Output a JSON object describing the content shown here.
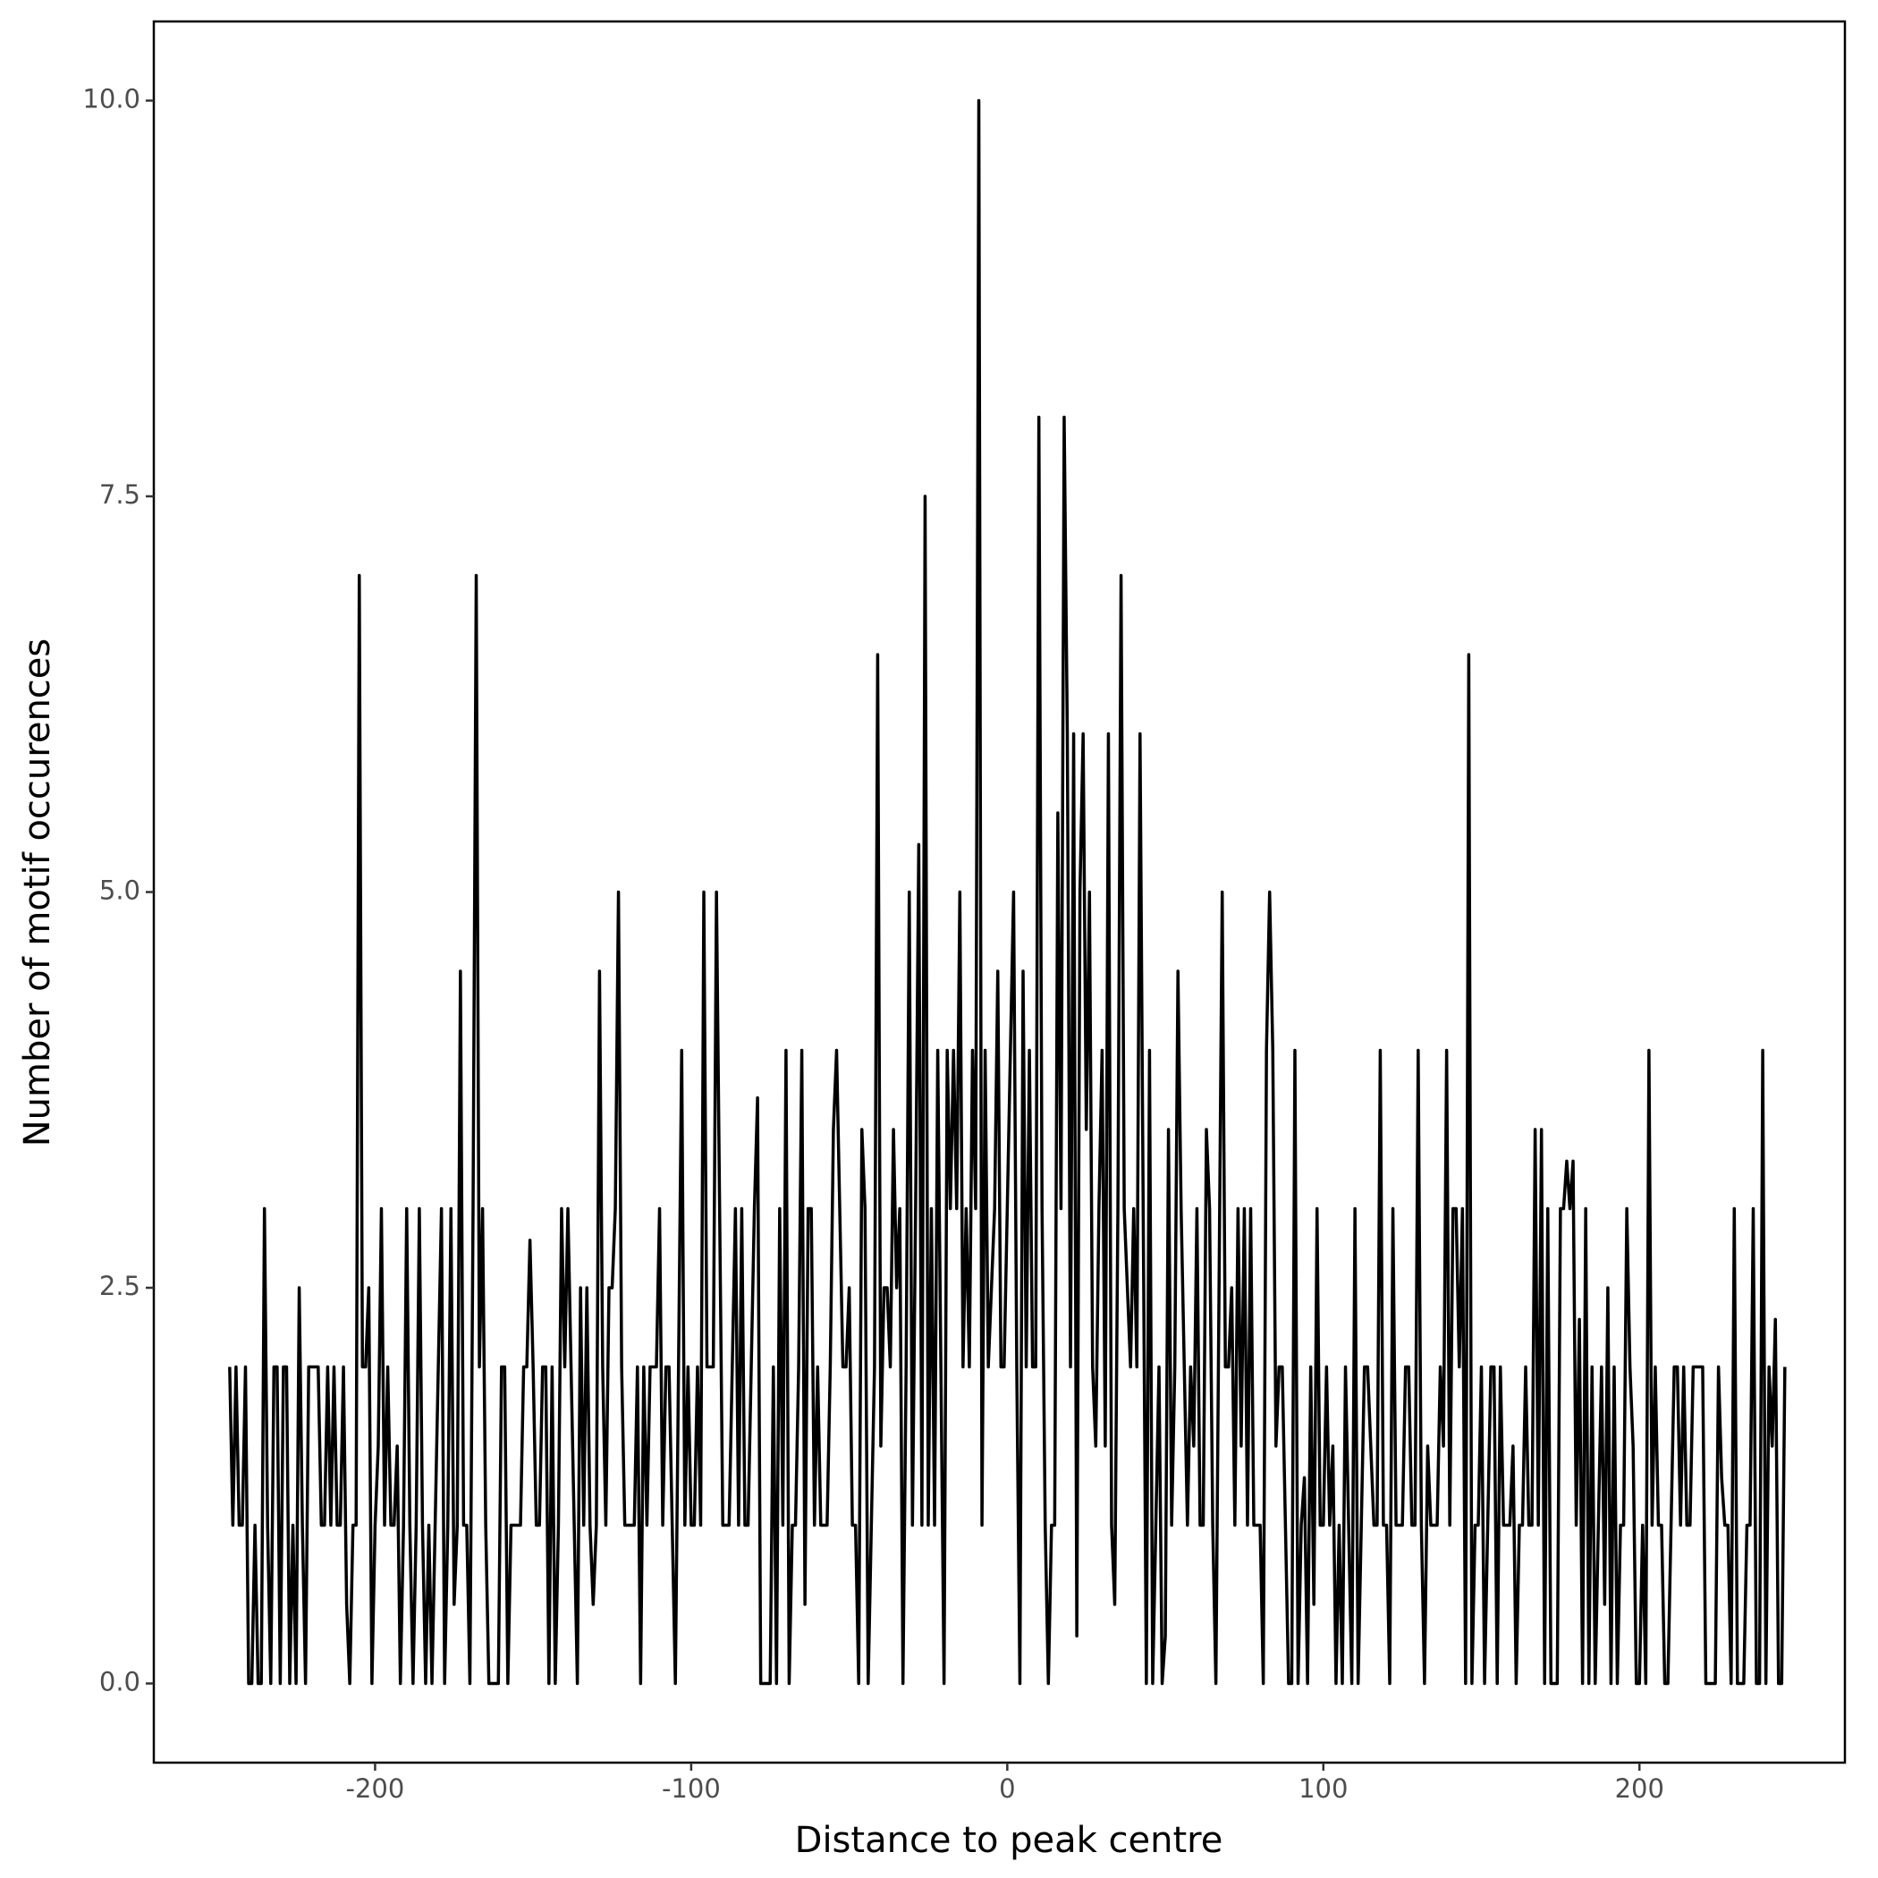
{
  "chart_data": {
    "type": "line",
    "x_label": "Distance to peak centre",
    "y_label": "Number of motif occurences",
    "color": "#000000",
    "xlim": [
      -270,
      265
    ],
    "ylim": [
      -0.5,
      10.5
    ],
    "xticks": [
      -200,
      -100,
      0,
      100,
      200
    ],
    "yticks": [
      {
        "value": 0,
        "label": "0.0"
      },
      2.5,
      {
        "value": 5,
        "label": "5.0"
      },
      7.5,
      {
        "value": 10,
        "label": "10.0"
      }
    ],
    "grid": false,
    "x": [
      -246,
      -245,
      -244,
      -243,
      -242,
      -241,
      -240,
      -239,
      -238,
      -237,
      -236,
      -235,
      -234,
      -233,
      -232,
      -231,
      -230,
      -229,
      -228,
      -227,
      -226,
      -225,
      -224,
      -223,
      -222,
      -221,
      -220,
      -219,
      -218,
      -217,
      -216,
      -215,
      -214,
      -213,
      -212,
      -211,
      -210,
      -209,
      -208,
      -207,
      -206,
      -205,
      -204,
      -203,
      -202,
      -201,
      -200,
      -199,
      -198,
      -197,
      -196,
      -195,
      -194,
      -193,
      -192,
      -191,
      -190,
      -189,
      -188,
      -187,
      -186,
      -185,
      -184,
      -183,
      -182,
      -181,
      -180,
      -179,
      -178,
      -177,
      -176,
      -175,
      -174,
      -173,
      -172,
      -171,
      -170,
      -169,
      -168,
      -167,
      -166,
      -165,
      -164,
      -163,
      -162,
      -161,
      -160,
      -159,
      -158,
      -157,
      -156,
      -155,
      -154,
      -153,
      -152,
      -151,
      -150,
      -149,
      -148,
      -147,
      -146,
      -145,
      -144,
      -143,
      -142,
      -141,
      -140,
      -139,
      -138,
      -137,
      -136,
      -135,
      -134,
      -133,
      -132,
      -131,
      -130,
      -129,
      -128,
      -127,
      -126,
      -125,
      -124,
      -123,
      -122,
      -121,
      -120,
      -119,
      -118,
      -117,
      -116,
      -115,
      -114,
      -113,
      -112,
      -111,
      -110,
      -109,
      -108,
      -107,
      -106,
      -105,
      -104,
      -103,
      -102,
      -101,
      -100,
      -99,
      -98,
      -97,
      -96,
      -95,
      -94,
      -93,
      -92,
      -91,
      -90,
      -89,
      -88,
      -87,
      -86,
      -85,
      -84,
      -83,
      -82,
      -81,
      -80,
      -79,
      -78,
      -77,
      -76,
      -75,
      -74,
      -73,
      -72,
      -71,
      -70,
      -69,
      -68,
      -67,
      -66,
      -65,
      -64,
      -63,
      -62,
      -61,
      -60,
      -59,
      -58,
      -57,
      -56,
      -55,
      -54,
      -53,
      -52,
      -51,
      -50,
      -49,
      -48,
      -47,
      -46,
      -45,
      -44,
      -43,
      -42,
      -41,
      -40,
      -39,
      -38,
      -37,
      -36,
      -35,
      -34,
      -33,
      -32,
      -31,
      -30,
      -29,
      -28,
      -27,
      -26,
      -25,
      -24,
      -23,
      -22,
      -21,
      -20,
      -19,
      -18,
      -17,
      -16,
      -15,
      -14,
      -13,
      -12,
      -11,
      -10,
      -9,
      -8,
      -7,
      -6,
      -5,
      -4,
      -3,
      -2,
      -1,
      0,
      1,
      2,
      3,
      4,
      5,
      6,
      7,
      8,
      9,
      10,
      11,
      12,
      13,
      14,
      15,
      16,
      17,
      18,
      19,
      20,
      21,
      22,
      23,
      24,
      25,
      26,
      27,
      28,
      29,
      30,
      31,
      32,
      33,
      34,
      35,
      36,
      37,
      38,
      39,
      40,
      41,
      42,
      43,
      44,
      45,
      46,
      47,
      48,
      49,
      50,
      51,
      52,
      53,
      54,
      55,
      56,
      57,
      58,
      59,
      60,
      61,
      62,
      63,
      64,
      65,
      66,
      67,
      68,
      69,
      70,
      71,
      72,
      73,
      74,
      75,
      76,
      77,
      78,
      79,
      80,
      81,
      82,
      83,
      84,
      85,
      86,
      87,
      88,
      89,
      90,
      91,
      92,
      93,
      94,
      95,
      96,
      97,
      98,
      99,
      100,
      101,
      102,
      103,
      104,
      105,
      106,
      107,
      108,
      109,
      110,
      111,
      112,
      113,
      114,
      115,
      116,
      117,
      118,
      119,
      120,
      121,
      122,
      123,
      124,
      125,
      126,
      127,
      128,
      129,
      130,
      131,
      132,
      133,
      134,
      135,
      136,
      137,
      138,
      139,
      140,
      141,
      142,
      143,
      144,
      145,
      146,
      147,
      148,
      149,
      150,
      151,
      152,
      153,
      154,
      155,
      156,
      157,
      158,
      159,
      160,
      161,
      162,
      163,
      164,
      165,
      166,
      167,
      168,
      169,
      170,
      171,
      172,
      173,
      174,
      175,
      176,
      177,
      178,
      179,
      180,
      181,
      182,
      183,
      184,
      185,
      186,
      187,
      188,
      189,
      190,
      191,
      192,
      193,
      194,
      195,
      196,
      197,
      198,
      199,
      200,
      201,
      202,
      203,
      204,
      205,
      206,
      207,
      208,
      209,
      210,
      211,
      212,
      213,
      214,
      215,
      216,
      217,
      218,
      219,
      220,
      221,
      222,
      223,
      224,
      225,
      226,
      227,
      228,
      229,
      230,
      231,
      232,
      233,
      234,
      235,
      236,
      237,
      238,
      239,
      240,
      241,
      242,
      243,
      244,
      245,
      246
    ],
    "values": [
      2,
      1,
      2,
      1,
      1,
      2,
      0,
      0,
      1,
      0,
      0,
      3,
      1,
      0,
      2,
      2,
      0,
      2,
      2,
      0,
      1,
      0,
      2.5,
      1,
      0,
      2,
      2,
      2,
      2,
      1,
      1,
      2,
      1,
      2,
      1,
      1,
      2,
      0.5,
      0,
      1,
      1,
      7,
      2,
      2,
      2.5,
      0,
      1,
      1.5,
      3,
      1,
      2,
      1,
      1,
      1.5,
      0,
      1,
      3,
      1,
      0,
      1,
      3,
      1,
      0,
      1,
      0,
      1,
      2,
      3,
      0,
      1,
      3,
      0.5,
      1,
      4.5,
      1,
      1,
      0,
      3,
      7,
      2,
      3,
      1,
      0,
      0,
      0,
      0,
      2,
      2,
      0,
      1,
      1,
      1,
      1,
      2,
      2,
      2.8,
      2,
      1,
      1,
      2,
      2,
      0,
      2,
      0,
      1,
      3,
      2,
      3,
      2,
      1,
      0,
      2.5,
      1,
      2.5,
      1,
      0.5,
      1,
      4.5,
      2,
      1,
      2.5,
      2.5,
      3,
      5,
      2,
      1,
      1,
      1,
      1,
      2,
      0,
      2,
      1,
      2,
      2,
      2,
      3,
      1,
      2,
      2,
      1,
      0,
      2,
      4,
      1,
      2,
      1,
      1,
      2,
      1,
      5,
      2,
      2,
      2,
      5,
      3,
      1,
      1,
      1,
      2,
      3,
      1,
      3,
      1,
      1,
      2,
      3,
      3.7,
      0,
      0,
      0,
      0,
      2,
      0,
      3,
      1,
      4,
      0,
      1,
      1,
      2,
      4,
      0.5,
      3,
      3,
      1,
      2,
      1,
      1,
      1,
      2,
      3.5,
      4,
      3,
      2,
      2,
      2.5,
      1,
      1,
      0,
      3.5,
      3,
      0,
      1,
      2,
      6.5,
      1.5,
      2.5,
      2.5,
      2,
      3.5,
      2.5,
      3,
      0,
      2,
      5,
      1,
      3,
      5.3,
      1,
      7.5,
      1,
      3,
      1,
      4,
      2,
      0,
      4,
      3,
      4,
      3,
      5,
      2,
      3,
      2,
      4,
      3,
      10,
      1,
      4,
      2,
      2.5,
      3,
      4.5,
      2,
      2,
      3,
      4,
      5,
      2,
      0,
      4.5,
      2,
      4,
      2,
      2,
      8,
      3,
      1,
      0,
      1,
      1,
      5.5,
      3,
      8,
      6,
      2,
      6,
      0.3,
      5,
      6,
      3.5,
      5,
      2,
      1.5,
      3,
      4,
      1.5,
      6,
      1,
      0.5,
      3,
      7,
      3,
      2.5,
      2,
      3,
      2,
      6,
      3,
      0,
      4,
      0,
      1,
      2,
      0,
      0.3,
      3.5,
      1,
      2,
      4.5,
      3,
      2,
      1,
      2,
      1.5,
      3,
      1,
      1,
      3.5,
      3,
      1,
      0,
      2.5,
      5,
      2,
      2,
      2.5,
      1,
      3,
      1.5,
      3,
      1,
      3,
      1,
      1,
      1,
      0,
      4,
      5,
      4,
      1.5,
      2,
      2,
      1,
      0,
      0,
      4,
      0,
      1,
      1.3,
      0,
      2,
      0.5,
      3,
      1,
      1,
      2,
      1,
      1.5,
      0,
      1,
      0,
      2,
      1,
      0,
      3,
      0,
      1,
      2,
      2,
      1.5,
      1,
      1,
      4,
      1,
      1,
      0,
      3,
      1,
      1,
      1,
      2,
      2,
      1,
      1,
      4,
      1,
      0,
      1.5,
      1,
      1,
      1,
      2,
      1.5,
      4,
      1,
      3,
      3,
      2,
      3,
      0,
      6.5,
      0,
      1,
      1,
      2,
      0,
      1,
      2,
      2,
      0,
      2,
      1,
      1,
      1,
      1.5,
      0,
      1,
      1,
      2,
      1,
      1,
      3.5,
      1,
      3.5,
      0,
      3,
      0,
      0,
      0,
      3,
      3,
      3.3,
      3,
      3.3,
      1,
      2.3,
      0,
      3,
      0,
      2,
      0,
      1,
      2,
      0.5,
      2.5,
      0,
      2,
      0,
      1,
      1,
      3,
      2,
      1.5,
      0,
      0,
      1,
      0,
      4,
      1,
      2,
      1,
      1,
      0,
      0,
      1,
      2,
      2,
      1,
      2,
      1,
      1,
      2,
      2,
      2,
      2,
      0,
      0,
      0,
      0,
      2,
      1.3,
      1,
      1,
      0,
      3,
      0,
      0,
      0,
      1,
      1,
      3,
      0,
      0,
      4,
      0,
      2,
      1.5,
      2.3,
      0,
      0,
      2
    ]
  }
}
